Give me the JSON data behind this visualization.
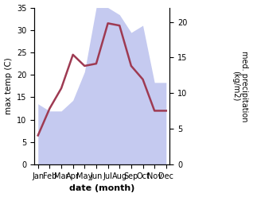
{
  "months": [
    "Jan",
    "Feb",
    "Mar",
    "Apr",
    "May",
    "Jun",
    "Jul",
    "Aug",
    "Sep",
    "Oct",
    "Nov",
    "Dec"
  ],
  "x": [
    0,
    1,
    2,
    3,
    4,
    5,
    6,
    7,
    8,
    9,
    10,
    11
  ],
  "temperature": [
    6.5,
    12.5,
    17.0,
    24.5,
    22.0,
    22.5,
    31.5,
    31.0,
    22.0,
    19.0,
    12.0,
    12.0
  ],
  "precipitation_kg": [
    8.5,
    7.5,
    7.5,
    9.0,
    13.0,
    22.0,
    22.0,
    21.0,
    18.5,
    19.5,
    11.5,
    11.5
  ],
  "temp_color": "#9e3a52",
  "precip_fill_color": "#c5caf0",
  "temp_ylim": [
    0,
    35
  ],
  "precip_ylim": [
    0,
    22
  ],
  "left_yticks": [
    0,
    5,
    10,
    15,
    20,
    25,
    30,
    35
  ],
  "right_yticks": [
    0,
    5,
    10,
    15,
    20
  ],
  "xlabel": "date (month)",
  "ylabel_left": "max temp (C)",
  "ylabel_right": "med. precipitation\n(kg/m2)"
}
